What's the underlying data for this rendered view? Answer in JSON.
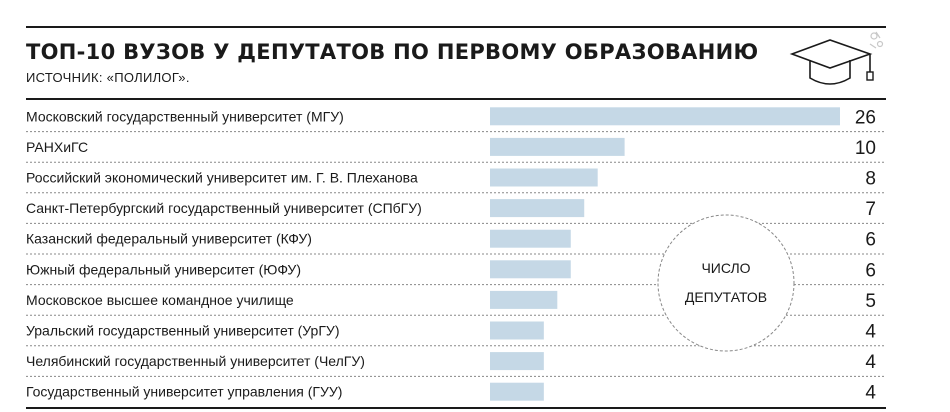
{
  "title": "ТОП-10 ВУЗОВ У ДЕПУТАТОВ ПО ПЕРВОМУ ОБРАЗОВАНИЮ",
  "source": "ИСТОЧНИК: «ПОЛИЛОГ».",
  "icon": "graduation-cap-icon",
  "colors": {
    "bar": "#c5d8e6",
    "text": "#1a1a1a",
    "divider": "#888888"
  },
  "chart_data": {
    "type": "bar",
    "orientation": "horizontal",
    "categories": [
      "Московский государственный университет (МГУ)",
      "РАНХиГС",
      "Российский экономический университет им. Г. В. Плеханова",
      "Санкт-Петербургский государственный университет (СПбГУ)",
      "Казанский федеральный университет (КФУ)",
      "Южный федеральный университет (ЮФУ)",
      "Московское высшее командное училище",
      "Уральский государственный университет (УрГУ)",
      "Челябинский государственный университет (ЧелГУ)",
      "Государственный университет управления (ГУУ)"
    ],
    "values": [
      26,
      10,
      8,
      7,
      6,
      6,
      5,
      4,
      4,
      4
    ],
    "xlim": [
      0,
      26
    ],
    "legend_lines": [
      "ЧИСЛО",
      "ДЕПУТАТОВ"
    ],
    "grid": false
  }
}
